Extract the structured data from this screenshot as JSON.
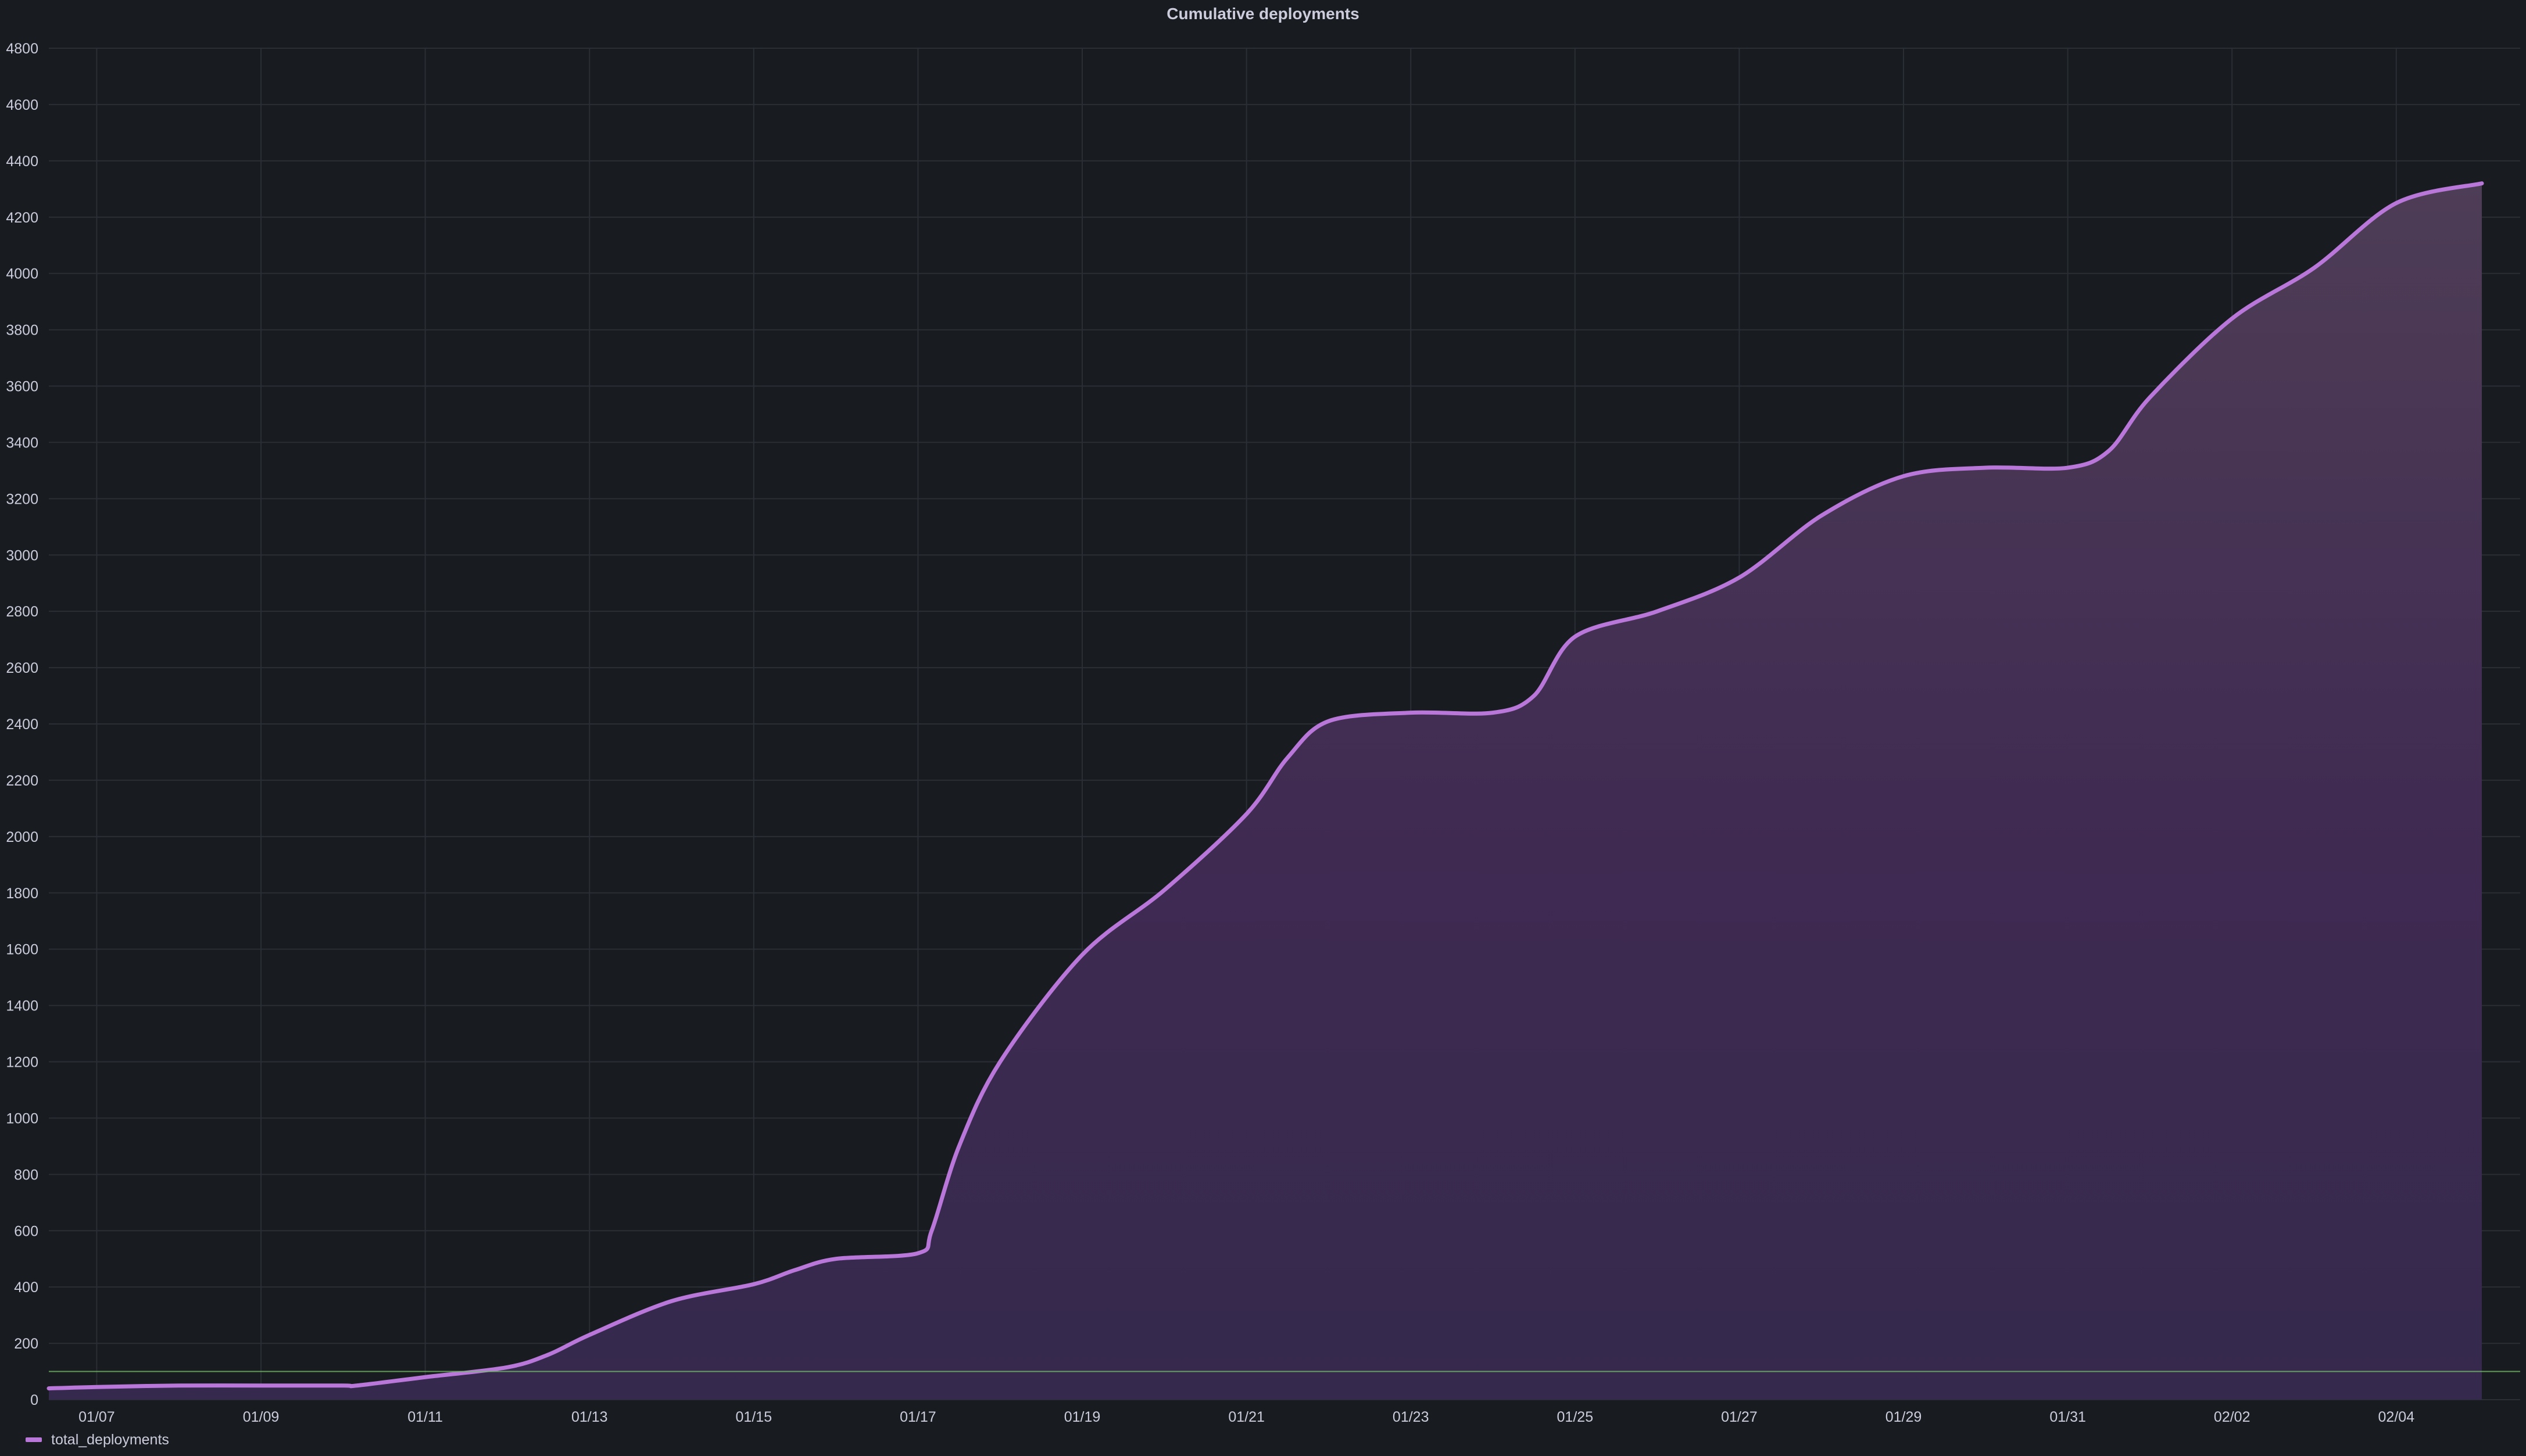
{
  "panel": {
    "title": "Cumulative deployments"
  },
  "chart_data": {
    "type": "area",
    "title": "Cumulative deployments",
    "xlabel": "",
    "ylabel": "",
    "x_tick_labels": [
      "01/07",
      "01/09",
      "01/11",
      "01/13",
      "01/15",
      "01/17",
      "01/19",
      "01/21",
      "01/23",
      "01/25",
      "01/27",
      "01/29",
      "01/31",
      "02/02",
      "02/04"
    ],
    "y_tick_labels": [
      "0",
      "200",
      "400",
      "600",
      "800",
      "1000",
      "1200",
      "1400",
      "1600",
      "1800",
      "2000",
      "2200",
      "2400",
      "2600",
      "2800",
      "3000",
      "3200",
      "3400",
      "3600",
      "3800",
      "4000",
      "4200",
      "4400",
      "4600",
      "4800"
    ],
    "xlim": [
      "01/06 10:00",
      "02/05 01:00"
    ],
    "ylim": [
      0,
      4800
    ],
    "grid": true,
    "legend_position": "bottom-left",
    "threshold": 100,
    "series": [
      {
        "name": "total_deployments",
        "color": "#b877d9",
        "x": [
          "01/06 10:00",
          "01/07 00:00",
          "01/08 00:00",
          "01/09 00:00",
          "01/10 00:00",
          "01/10 04:00",
          "01/11 00:00",
          "01/12 00:00",
          "01/12 12:00",
          "01/13 00:00",
          "01/14 00:00",
          "01/15 00:00",
          "01/15 12:00",
          "01/16 00:00",
          "01/17 00:00",
          "01/17 04:00",
          "01/17 12:00",
          "01/18 00:00",
          "01/19 00:00",
          "01/20 00:00",
          "01/21 00:00",
          "01/21 12:00",
          "01/22 00:00",
          "01/23 00:00",
          "01/24 00:00",
          "01/24 12:00",
          "01/25 00:00",
          "01/26 00:00",
          "01/27 00:00",
          "01/28 00:00",
          "01/29 00:00",
          "01/30 00:00",
          "01/31 00:00",
          "01/31 12:00",
          "02/01 00:00",
          "02/02 00:00",
          "02/03 00:00",
          "02/04 00:00",
          "02/05 01:00"
        ],
        "values": [
          40,
          45,
          50,
          50,
          50,
          50,
          80,
          115,
          160,
          230,
          350,
          410,
          460,
          500,
          520,
          600,
          900,
          1200,
          1580,
          1810,
          2080,
          2280,
          2410,
          2440,
          2440,
          2500,
          2710,
          2800,
          2920,
          3140,
          3280,
          3310,
          3310,
          3370,
          3560,
          3840,
          4020,
          4250,
          4320
        ]
      }
    ]
  }
}
